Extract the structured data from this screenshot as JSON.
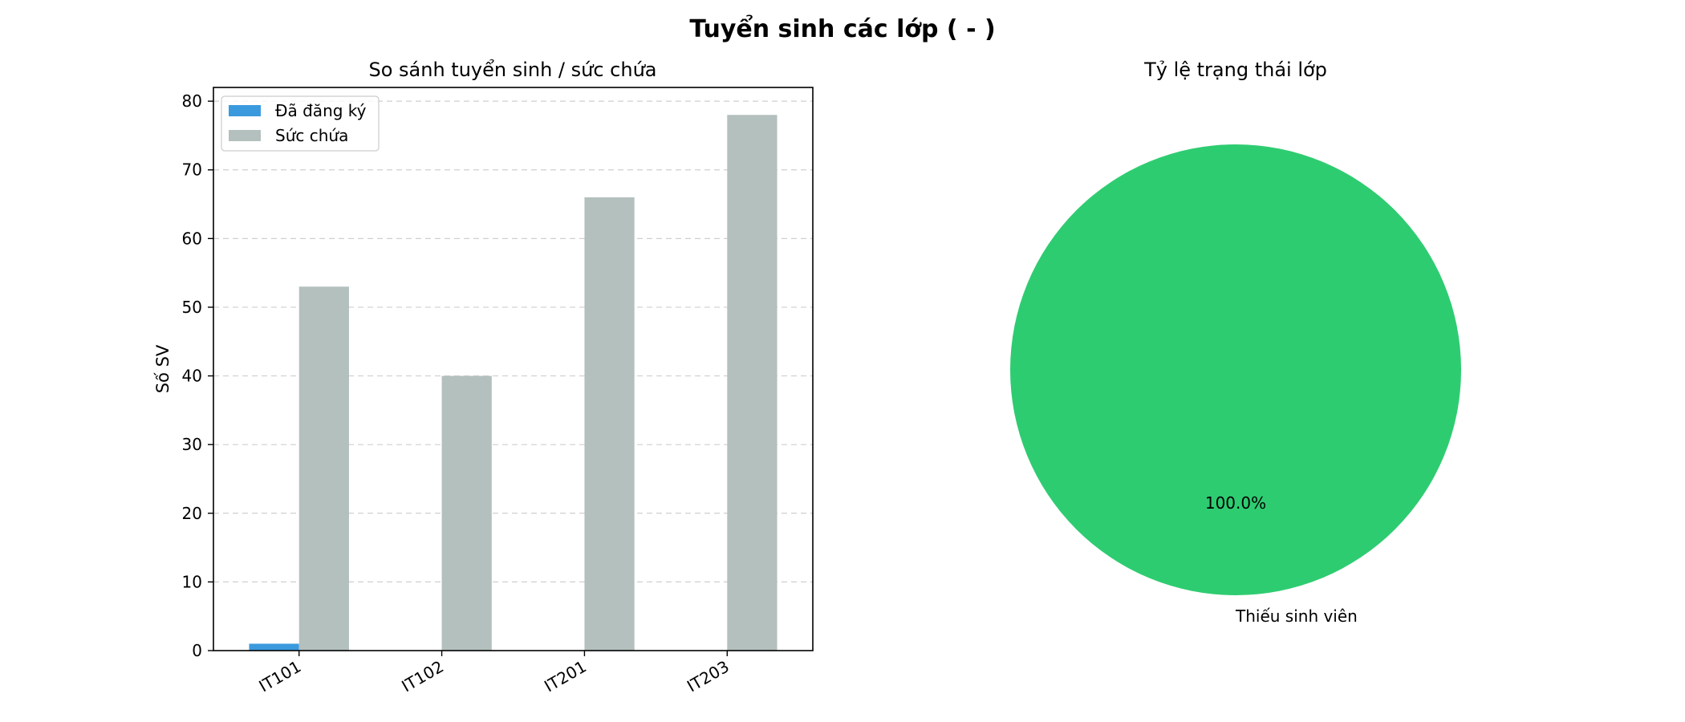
{
  "title": "Tuyển sinh các lớp ( - )",
  "chart_data": [
    {
      "type": "bar",
      "title": "So sánh tuyển sinh / sức chứa",
      "xlabel": "",
      "ylabel": "Số SV",
      "categories": [
        "IT101",
        "IT102",
        "IT201",
        "IT203"
      ],
      "series": [
        {
          "name": "Đã đăng ký",
          "values": [
            1,
            0,
            0,
            0
          ],
          "color": "#3b9ade"
        },
        {
          "name": "Sức chứa",
          "values": [
            53,
            40,
            66,
            78
          ],
          "color": "#b4c0be"
        }
      ],
      "ylim": [
        0,
        82
      ],
      "yticks": [
        0,
        10,
        20,
        30,
        40,
        50,
        60,
        70,
        80
      ],
      "grid": "y-dashed",
      "legend": "upper-left"
    },
    {
      "type": "pie",
      "title": "Tỷ lệ trạng thái lớp",
      "slices": [
        {
          "label": "Thiếu sinh viên",
          "value": 100.0,
          "pct_label": "100.0%",
          "color": "#2ecc71"
        }
      ]
    }
  ]
}
